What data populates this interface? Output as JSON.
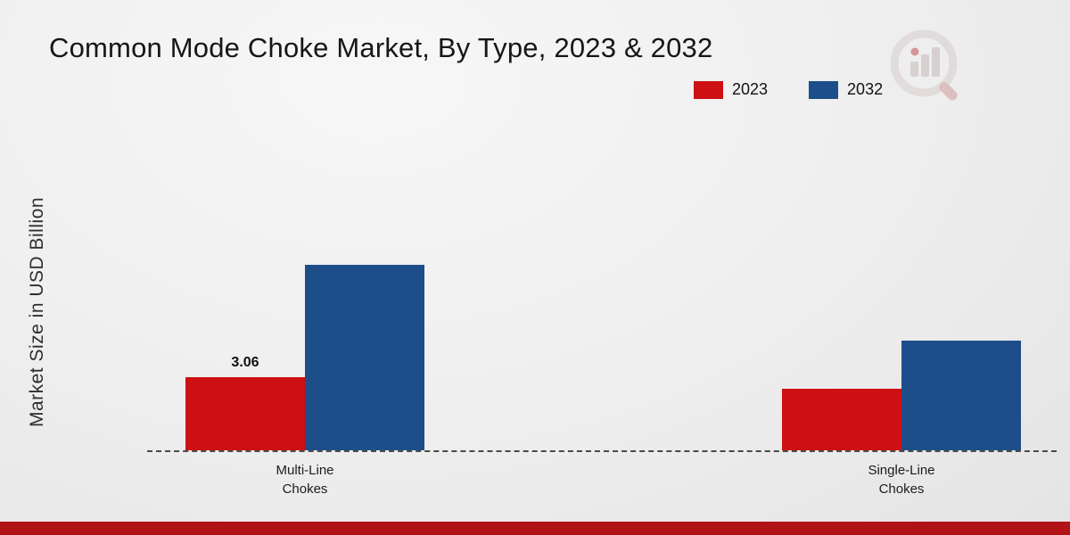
{
  "page": {
    "footer_color": "#b01215"
  },
  "chart_data": {
    "type": "bar",
    "title": "Common Mode Choke Market, By Type, 2023 & 2032",
    "xlabel": "",
    "ylabel": "Market Size in USD Billion",
    "categories": [
      "Multi-Line Chokes",
      "Single-Line Chokes"
    ],
    "series": [
      {
        "name": "2023",
        "color": "#cc1013",
        "values": [
          3.06,
          2.6
        ],
        "labels": [
          "3.06",
          ""
        ]
      },
      {
        "name": "2032",
        "color": "#1d4e89",
        "values": [
          7.8,
          4.6
        ],
        "labels": [
          "",
          ""
        ]
      }
    ],
    "ylim": [
      0,
      9
    ],
    "grid": false,
    "legend_position": "top-right",
    "baseline_style": "dashed"
  }
}
